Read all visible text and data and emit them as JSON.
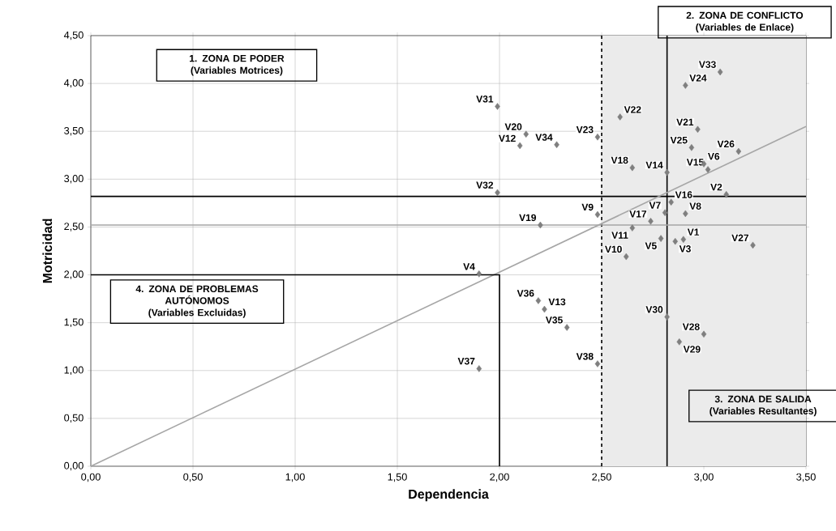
{
  "chart_data": {
    "type": "scatter",
    "xlabel": "Dependencia",
    "ylabel": "Motricidad",
    "xlim": [
      0,
      3.5
    ],
    "ylim": [
      0,
      4.5
    ],
    "xticks": [
      {
        "value": 0,
        "label": "0,00"
      },
      {
        "value": 0.5,
        "label": "0,50"
      },
      {
        "value": 1,
        "label": "1,00"
      },
      {
        "value": 1.5,
        "label": "1,50"
      },
      {
        "value": 2,
        "label": "2,00"
      },
      {
        "value": 2.5,
        "label": "2,50"
      },
      {
        "value": 3,
        "label": "3,00"
      },
      {
        "value": 3.5,
        "label": "3,50"
      }
    ],
    "yticks": [
      {
        "value": 0,
        "label": "0,00"
      },
      {
        "value": 0.5,
        "label": "0,50"
      },
      {
        "value": 1,
        "label": "1,00"
      },
      {
        "value": 1.5,
        "label": "1,50"
      },
      {
        "value": 2,
        "label": "2,00"
      },
      {
        "value": 2.5,
        "label": "2,50"
      },
      {
        "value": 3,
        "label": "3,00"
      },
      {
        "value": 3.5,
        "label": "3,50"
      },
      {
        "value": 4,
        "label": "4,00"
      },
      {
        "value": 4.5,
        "label": "4,50"
      }
    ],
    "grid": true,
    "series": [
      {
        "marker": "diamond",
        "color": "#7f7f7f",
        "x": [
          2.9,
          3.11,
          2.86,
          1.9,
          2.79,
          3.0,
          2.81,
          2.91,
          2.48,
          2.62,
          2.65,
          2.1,
          2.22,
          2.82,
          3.02,
          2.84,
          2.74,
          2.65,
          2.2,
          2.13,
          2.97,
          2.59,
          2.48,
          2.91,
          2.94,
          3.17,
          3.24,
          3.0,
          2.88,
          2.82,
          1.99,
          1.99,
          3.08,
          2.28,
          2.33,
          2.19,
          1.9,
          2.48
        ],
        "values": [
          2.37,
          2.84,
          2.35,
          2.01,
          2.38,
          3.16,
          2.65,
          2.64,
          2.63,
          2.19,
          2.49,
          3.35,
          1.64,
          3.07,
          3.1,
          2.76,
          2.56,
          3.12,
          2.52,
          3.47,
          3.52,
          3.65,
          3.44,
          3.98,
          3.33,
          3.29,
          2.31,
          1.38,
          1.3,
          1.56,
          3.76,
          2.86,
          4.12,
          3.36,
          1.45,
          1.73,
          1.02,
          1.07
        ]
      },
      {
        "type": "line",
        "marker": "none",
        "color": "#a6a6a6",
        "x": [
          0,
          3.5
        ],
        "values": [
          0,
          3.55
        ]
      },
      {
        "type": "line",
        "marker": "none",
        "color": "#000000",
        "x": [
          0,
          2,
          2
        ],
        "values": [
          2,
          2,
          0
        ]
      }
    ],
    "ref_lines": [
      {
        "axis": "x",
        "value": 2.5,
        "line_style": "dashed",
        "color": "#000000"
      },
      {
        "axis": "x",
        "value": 2.82,
        "color": "#000000"
      },
      {
        "axis": "y",
        "value": 2.82,
        "color": "#000000"
      },
      {
        "axis": "y",
        "value": 2.52,
        "color": "#a6a6a6"
      }
    ],
    "bands": [
      {
        "axis": "x",
        "from": 2.5,
        "to": 3.5,
        "color": "#ebebeb"
      }
    ],
    "annotations": [
      "1. ZONA DE PODER",
      "(Variables Motrices)",
      "2. ZONA DE CONFLICTO",
      "(Variables de Enlace)",
      "3. ZONA DE SALIDA",
      "(Variables Resultantes)",
      "4. ZONA DE PROBLEMAS AUTÓNOMOS",
      "(Variables Excluidas)",
      {
        "text": "V1",
        "x": 2.9,
        "y": 2.37
      },
      {
        "text": "V2",
        "x": 3.11,
        "y": 2.84
      },
      {
        "text": "V3",
        "x": 2.86,
        "y": 2.35
      },
      {
        "text": "V4",
        "x": 1.9,
        "y": 2.01
      },
      {
        "text": "V5",
        "x": 2.79,
        "y": 2.38
      },
      {
        "text": "V6",
        "x": 3.0,
        "y": 3.16
      },
      {
        "text": "V7",
        "x": 2.81,
        "y": 2.65
      },
      {
        "text": "V8",
        "x": 2.91,
        "y": 2.64
      },
      {
        "text": "V9",
        "x": 2.48,
        "y": 2.63
      },
      {
        "text": "V10",
        "x": 2.62,
        "y": 2.19
      },
      {
        "text": "V11",
        "x": 2.65,
        "y": 2.49
      },
      {
        "text": "V12",
        "x": 2.1,
        "y": 3.35
      },
      {
        "text": "V13",
        "x": 2.22,
        "y": 1.64
      },
      {
        "text": "V14",
        "x": 2.82,
        "y": 3.07
      },
      {
        "text": "V15",
        "x": 3.02,
        "y": 3.1
      },
      {
        "text": "V16",
        "x": 2.84,
        "y": 2.76
      },
      {
        "text": "V17",
        "x": 2.74,
        "y": 2.56
      },
      {
        "text": "V18",
        "x": 2.65,
        "y": 3.12
      },
      {
        "text": "V19",
        "x": 2.2,
        "y": 2.52
      },
      {
        "text": "V20",
        "x": 2.13,
        "y": 3.47
      },
      {
        "text": "V21",
        "x": 2.97,
        "y": 3.52
      },
      {
        "text": "V22",
        "x": 2.59,
        "y": 3.65
      },
      {
        "text": "V23",
        "x": 2.48,
        "y": 3.44
      },
      {
        "text": "V24",
        "x": 2.91,
        "y": 3.98
      },
      {
        "text": "V25",
        "x": 2.94,
        "y": 3.33
      },
      {
        "text": "V26",
        "x": 3.17,
        "y": 3.29
      },
      {
        "text": "V27",
        "x": 3.24,
        "y": 2.31
      },
      {
        "text": "V28",
        "x": 3.0,
        "y": 1.38
      },
      {
        "text": "V29",
        "x": 2.88,
        "y": 1.3
      },
      {
        "text": "V30",
        "x": 2.82,
        "y": 1.56
      },
      {
        "text": "V31",
        "x": 1.99,
        "y": 3.76
      },
      {
        "text": "V32",
        "x": 1.99,
        "y": 2.86
      },
      {
        "text": "V33",
        "x": 3.08,
        "y": 4.12
      },
      {
        "text": "V34",
        "x": 2.28,
        "y": 3.36
      },
      {
        "text": "V35",
        "x": 2.33,
        "y": 1.45
      },
      {
        "text": "V36",
        "x": 2.19,
        "y": 1.73
      },
      {
        "text": "V37",
        "x": 1.9,
        "y": 1.02
      },
      {
        "text": "V38",
        "x": 2.48,
        "y": 1.07
      }
    ]
  }
}
